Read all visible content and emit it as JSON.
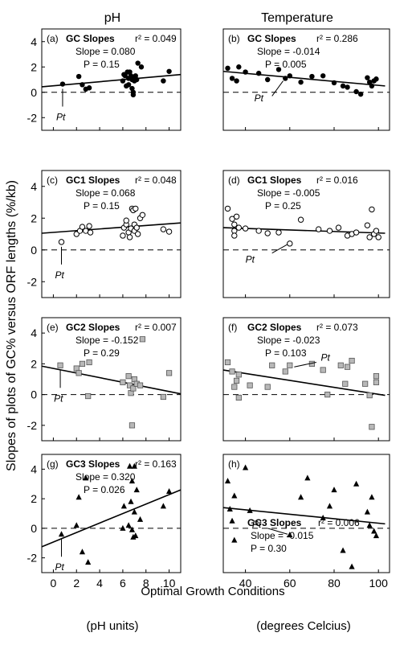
{
  "columns": {
    "left_title": "pH",
    "right_title": "Temperature"
  },
  "ylabel": "Slopes of plots of GC% versus ORF lengths (%/kb)",
  "xlabel": "Optimal Growth Conditions",
  "xunits": {
    "left": "(pH units)",
    "right": "(degrees Celcius)"
  },
  "chart_data": [
    {
      "id": "a",
      "type": "scatter",
      "tag": "(a)",
      "name": "GC Slopes",
      "r2": "r² = 0.049",
      "slope": "Slope = 0.080",
      "p": "P = 0.15",
      "pt": "Pt",
      "marker": "filled-circle",
      "xlim": [
        -1,
        11
      ],
      "ylim": [
        -3,
        5
      ],
      "yticks": [
        -2,
        0,
        2,
        4
      ],
      "fit": [
        [
          -1,
          0.43
        ],
        [
          11,
          1.4
        ]
      ],
      "points": [
        [
          0.8,
          0.65
        ],
        [
          2.2,
          1.25
        ],
        [
          2.5,
          0.6
        ],
        [
          2.8,
          0.25
        ],
        [
          3.1,
          0.35
        ],
        [
          6.0,
          0.9
        ],
        [
          6.1,
          1.4
        ],
        [
          6.2,
          1.3
        ],
        [
          6.3,
          0.5
        ],
        [
          6.4,
          1.6
        ],
        [
          6.5,
          1.1
        ],
        [
          6.5,
          0.6
        ],
        [
          6.6,
          1.6
        ],
        [
          6.7,
          1.3
        ],
        [
          6.8,
          1.0
        ],
        [
          6.8,
          0.3
        ],
        [
          6.9,
          0.0
        ],
        [
          6.9,
          -0.2
        ],
        [
          7.0,
          1.2
        ],
        [
          7.0,
          0.9
        ],
        [
          7.1,
          1.3
        ],
        [
          7.2,
          1.0
        ],
        [
          7.3,
          2.3
        ],
        [
          7.6,
          2.0
        ],
        [
          9.5,
          0.9
        ],
        [
          10.0,
          1.65
        ]
      ]
    },
    {
      "id": "b",
      "type": "scatter",
      "tag": "(b)",
      "name": "GC Slopes",
      "r2": "r² = 0.286",
      "slope": "Slope = -0.014",
      "p": "P = 0.005",
      "pt": "Pt",
      "marker": "filled-circle",
      "xlim": [
        30,
        105
      ],
      "ylim": [
        -3,
        5
      ],
      "yticks": [],
      "fit": [
        [
          30,
          1.65
        ],
        [
          103,
          0.5
        ]
      ],
      "points": [
        [
          32,
          1.9
        ],
        [
          34,
          1.1
        ],
        [
          36,
          0.9
        ],
        [
          37,
          2.0
        ],
        [
          40,
          1.6
        ],
        [
          46,
          1.5
        ],
        [
          50,
          1.0
        ],
        [
          55,
          1.8
        ],
        [
          58,
          1.1
        ],
        [
          60,
          1.3
        ],
        [
          65,
          0.8
        ],
        [
          70,
          1.25
        ],
        [
          75,
          1.3
        ],
        [
          80,
          0.75
        ],
        [
          84,
          0.5
        ],
        [
          86,
          0.4
        ],
        [
          90,
          0.05
        ],
        [
          92,
          -0.15
        ],
        [
          95,
          1.15
        ],
        [
          96,
          0.8
        ],
        [
          97,
          0.5
        ],
        [
          98,
          0.9
        ],
        [
          99,
          1.05
        ]
      ]
    },
    {
      "id": "c",
      "type": "scatter",
      "tag": "(c)",
      "name": "GC1 Slopes",
      "r2": "r² = 0.048",
      "slope": "Slope = 0.068",
      "p": "P = 0.15",
      "pt": "Pt",
      "marker": "open-circle",
      "xlim": [
        -1,
        11
      ],
      "ylim": [
        -3,
        5
      ],
      "yticks": [
        -2,
        0,
        2,
        4
      ],
      "fit": [
        [
          -1,
          1.05
        ],
        [
          11,
          1.7
        ]
      ],
      "points": [
        [
          0.7,
          0.5
        ],
        [
          2.0,
          1.0
        ],
        [
          2.3,
          1.2
        ],
        [
          2.5,
          1.45
        ],
        [
          2.8,
          1.2
        ],
        [
          3.1,
          1.5
        ],
        [
          3.2,
          1.1
        ],
        [
          6.0,
          0.9
        ],
        [
          6.1,
          1.4
        ],
        [
          6.3,
          1.6
        ],
        [
          6.3,
          1.85
        ],
        [
          6.5,
          1.1
        ],
        [
          6.6,
          0.8
        ],
        [
          6.7,
          1.35
        ],
        [
          6.8,
          2.6
        ],
        [
          6.9,
          2.5
        ],
        [
          7.0,
          1.6
        ],
        [
          7.0,
          1.2
        ],
        [
          7.1,
          2.6
        ],
        [
          7.2,
          1.4
        ],
        [
          7.3,
          1.0
        ],
        [
          7.5,
          2.0
        ],
        [
          7.7,
          2.2
        ],
        [
          9.5,
          1.3
        ],
        [
          10.0,
          1.15
        ]
      ]
    },
    {
      "id": "d",
      "type": "scatter",
      "tag": "(d)",
      "name": "GC1 Slopes",
      "r2": "r² = 0.016",
      "slope": "Slope = -0.005",
      "p": "P = 0.25",
      "pt": "Pt",
      "marker": "open-circle",
      "xlim": [
        30,
        105
      ],
      "ylim": [
        -3,
        5
      ],
      "yticks": [],
      "fit": [
        [
          30,
          1.4
        ],
        [
          103,
          1.05
        ]
      ],
      "points": [
        [
          32,
          2.6
        ],
        [
          34,
          1.95
        ],
        [
          35,
          1.2
        ],
        [
          35,
          1.6
        ],
        [
          35,
          0.9
        ],
        [
          36,
          2.1
        ],
        [
          37,
          1.4
        ],
        [
          40,
          1.35
        ],
        [
          46,
          1.2
        ],
        [
          50,
          1.05
        ],
        [
          55,
          1.1
        ],
        [
          60,
          0.4
        ],
        [
          65,
          1.9
        ],
        [
          73,
          1.3
        ],
        [
          78,
          1.2
        ],
        [
          82,
          1.4
        ],
        [
          86,
          0.9
        ],
        [
          88,
          1.0
        ],
        [
          90,
          1.1
        ],
        [
          95,
          1.55
        ],
        [
          96,
          0.8
        ],
        [
          97,
          2.55
        ],
        [
          98,
          1.0
        ],
        [
          99,
          1.2
        ],
        [
          100,
          0.8
        ]
      ]
    },
    {
      "id": "e",
      "type": "scatter",
      "tag": "(e)",
      "name": "GC2 Slopes",
      "r2": "r² = 0.007",
      "slope": "Slope = -0.152",
      "p": "P = 0.29",
      "pt": "Pt",
      "marker": "filled-square",
      "xlim": [
        -1,
        11
      ],
      "ylim": [
        -3,
        5
      ],
      "yticks": [
        -2,
        0,
        2,
        4
      ],
      "fit": [
        [
          -1,
          1.85
        ],
        [
          11,
          0.05
        ]
      ],
      "points": [
        [
          0.6,
          1.9
        ],
        [
          2.0,
          1.7
        ],
        [
          2.2,
          1.4
        ],
        [
          2.5,
          2.0
        ],
        [
          3.0,
          -0.1
        ],
        [
          3.1,
          2.1
        ],
        [
          6.0,
          0.8
        ],
        [
          6.5,
          1.2
        ],
        [
          6.6,
          0.6
        ],
        [
          6.7,
          0.1
        ],
        [
          6.8,
          -2.0
        ],
        [
          6.9,
          0.4
        ],
        [
          7.0,
          1.0
        ],
        [
          7.2,
          0.7
        ],
        [
          7.5,
          0.6
        ],
        [
          7.7,
          3.6
        ],
        [
          9.5,
          -0.15
        ],
        [
          10.0,
          1.4
        ]
      ]
    },
    {
      "id": "f",
      "type": "scatter",
      "tag": "(f)",
      "name": "GC2 Slopes",
      "r2": "r² = 0.073",
      "slope": "Slope = -0.023",
      "p": "P = 0.103",
      "pt": "Pt",
      "marker": "filled-square",
      "xlim": [
        30,
        105
      ],
      "ylim": [
        -3,
        5
      ],
      "yticks": [],
      "fit": [
        [
          30,
          1.6
        ],
        [
          103,
          -0.05
        ]
      ],
      "points": [
        [
          32,
          2.1
        ],
        [
          34,
          1.5
        ],
        [
          35,
          0.5
        ],
        [
          36,
          0.9
        ],
        [
          37,
          1.3
        ],
        [
          37,
          -0.2
        ],
        [
          42,
          0.6
        ],
        [
          50,
          0.5
        ],
        [
          52,
          1.9
        ],
        [
          58,
          1.5
        ],
        [
          60,
          1.9
        ],
        [
          70,
          2.0
        ],
        [
          75,
          1.6
        ],
        [
          77,
          0.0
        ],
        [
          83,
          1.9
        ],
        [
          85,
          0.7
        ],
        [
          86,
          1.8
        ],
        [
          88,
          2.2
        ],
        [
          94,
          0.7
        ],
        [
          96,
          -0.05
        ],
        [
          97,
          -2.1
        ],
        [
          99,
          1.2
        ],
        [
          99,
          0.8
        ]
      ]
    },
    {
      "id": "g",
      "type": "scatter",
      "tag": "(g)",
      "name": "GC3 Slopes",
      "r2": "r² = 0.163",
      "slope": "Slope = 0.320",
      "p": "P = 0.026",
      "pt": "Pt",
      "marker": "filled-triangle",
      "xlim": [
        -1,
        11
      ],
      "ylim": [
        -3,
        5
      ],
      "yticks": [
        -2,
        0,
        2,
        4
      ],
      "fit": [
        [
          -1,
          -1.25
        ],
        [
          11,
          2.6
        ]
      ],
      "points": [
        [
          0.7,
          -0.4
        ],
        [
          2.0,
          0.2
        ],
        [
          2.2,
          2.1
        ],
        [
          2.5,
          -1.6
        ],
        [
          2.8,
          3.4
        ],
        [
          3.0,
          -2.3
        ],
        [
          6.0,
          0.0
        ],
        [
          6.1,
          1.5
        ],
        [
          6.5,
          0.2
        ],
        [
          6.6,
          4.2
        ],
        [
          6.7,
          1.8
        ],
        [
          6.8,
          3.2
        ],
        [
          6.8,
          -0.1
        ],
        [
          6.9,
          -0.6
        ],
        [
          7.0,
          1.1
        ],
        [
          7.0,
          4.2
        ],
        [
          7.1,
          -0.5
        ],
        [
          7.2,
          2.6
        ],
        [
          7.5,
          0.6
        ],
        [
          9.5,
          1.5
        ],
        [
          10.0,
          2.5
        ]
      ]
    },
    {
      "id": "h",
      "type": "scatter",
      "tag": "(h)",
      "name": "GC3 Slopes",
      "r2": "r² = 0.006",
      "slope": "Slope = -0.015",
      "p": "P = 0.30",
      "pt": "Pt",
      "marker": "filled-triangle",
      "xlim": [
        30,
        105
      ],
      "ylim": [
        -3,
        5
      ],
      "yticks": [],
      "xticks": [
        40,
        60,
        80,
        100
      ],
      "fit": [
        [
          30,
          1.4
        ],
        [
          103,
          0.3
        ]
      ],
      "points": [
        [
          32,
          3.2
        ],
        [
          33,
          1.3
        ],
        [
          34,
          0.5
        ],
        [
          35,
          2.2
        ],
        [
          35,
          -0.8
        ],
        [
          40,
          4.1
        ],
        [
          42,
          1.2
        ],
        [
          60,
          -0.45
        ],
        [
          65,
          2.1
        ],
        [
          68,
          3.4
        ],
        [
          75,
          0.7
        ],
        [
          78,
          1.5
        ],
        [
          80,
          2.6
        ],
        [
          84,
          -1.5
        ],
        [
          88,
          -2.6
        ],
        [
          90,
          3.0
        ],
        [
          95,
          1.1
        ],
        [
          96,
          0.2
        ],
        [
          97,
          2.1
        ],
        [
          98,
          -0.2
        ],
        [
          99,
          -0.5
        ]
      ]
    }
  ]
}
